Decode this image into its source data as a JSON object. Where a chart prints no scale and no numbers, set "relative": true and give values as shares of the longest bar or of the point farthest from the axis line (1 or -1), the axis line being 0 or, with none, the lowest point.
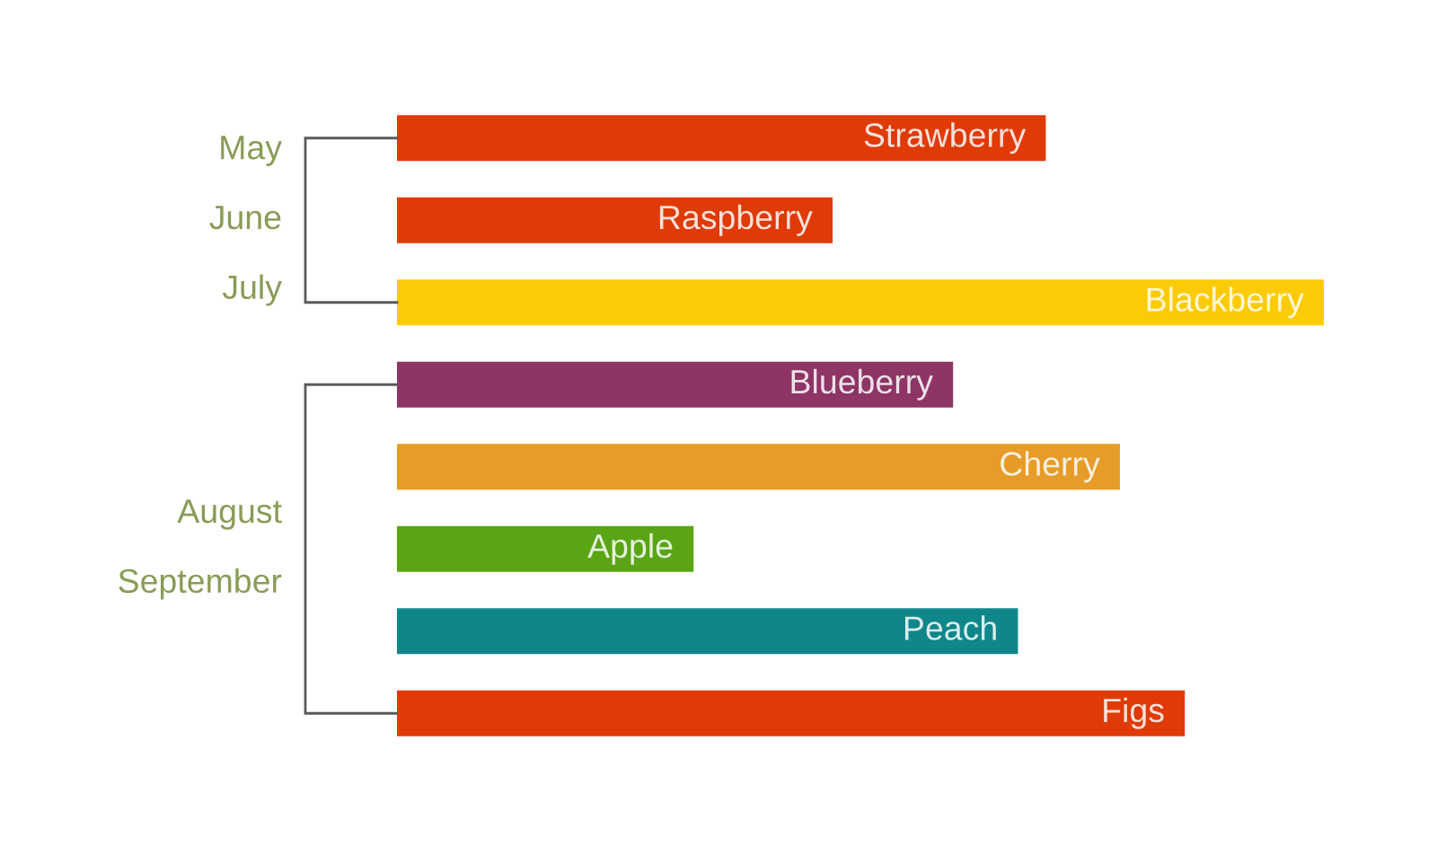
{
  "chart_data": {
    "type": "bar",
    "orientation": "horizontal",
    "relative": true,
    "categories": [
      "Strawberry",
      "Raspberry",
      "Blackberry",
      "Blueberry",
      "Cherry",
      "Apple",
      "Peach",
      "Figs"
    ],
    "values": [
      0.7,
      0.47,
      1,
      0.6,
      0.78,
      0.32,
      0.67,
      0.85
    ],
    "colors": [
      "#e03a06",
      "#e03a06",
      "#fdcb05",
      "#8e3566",
      "#e59c29",
      "#5aa514",
      "#0f878a",
      "#e03a06"
    ],
    "annotations": [
      "May",
      "June",
      "July",
      "August",
      "September"
    ]
  }
}
